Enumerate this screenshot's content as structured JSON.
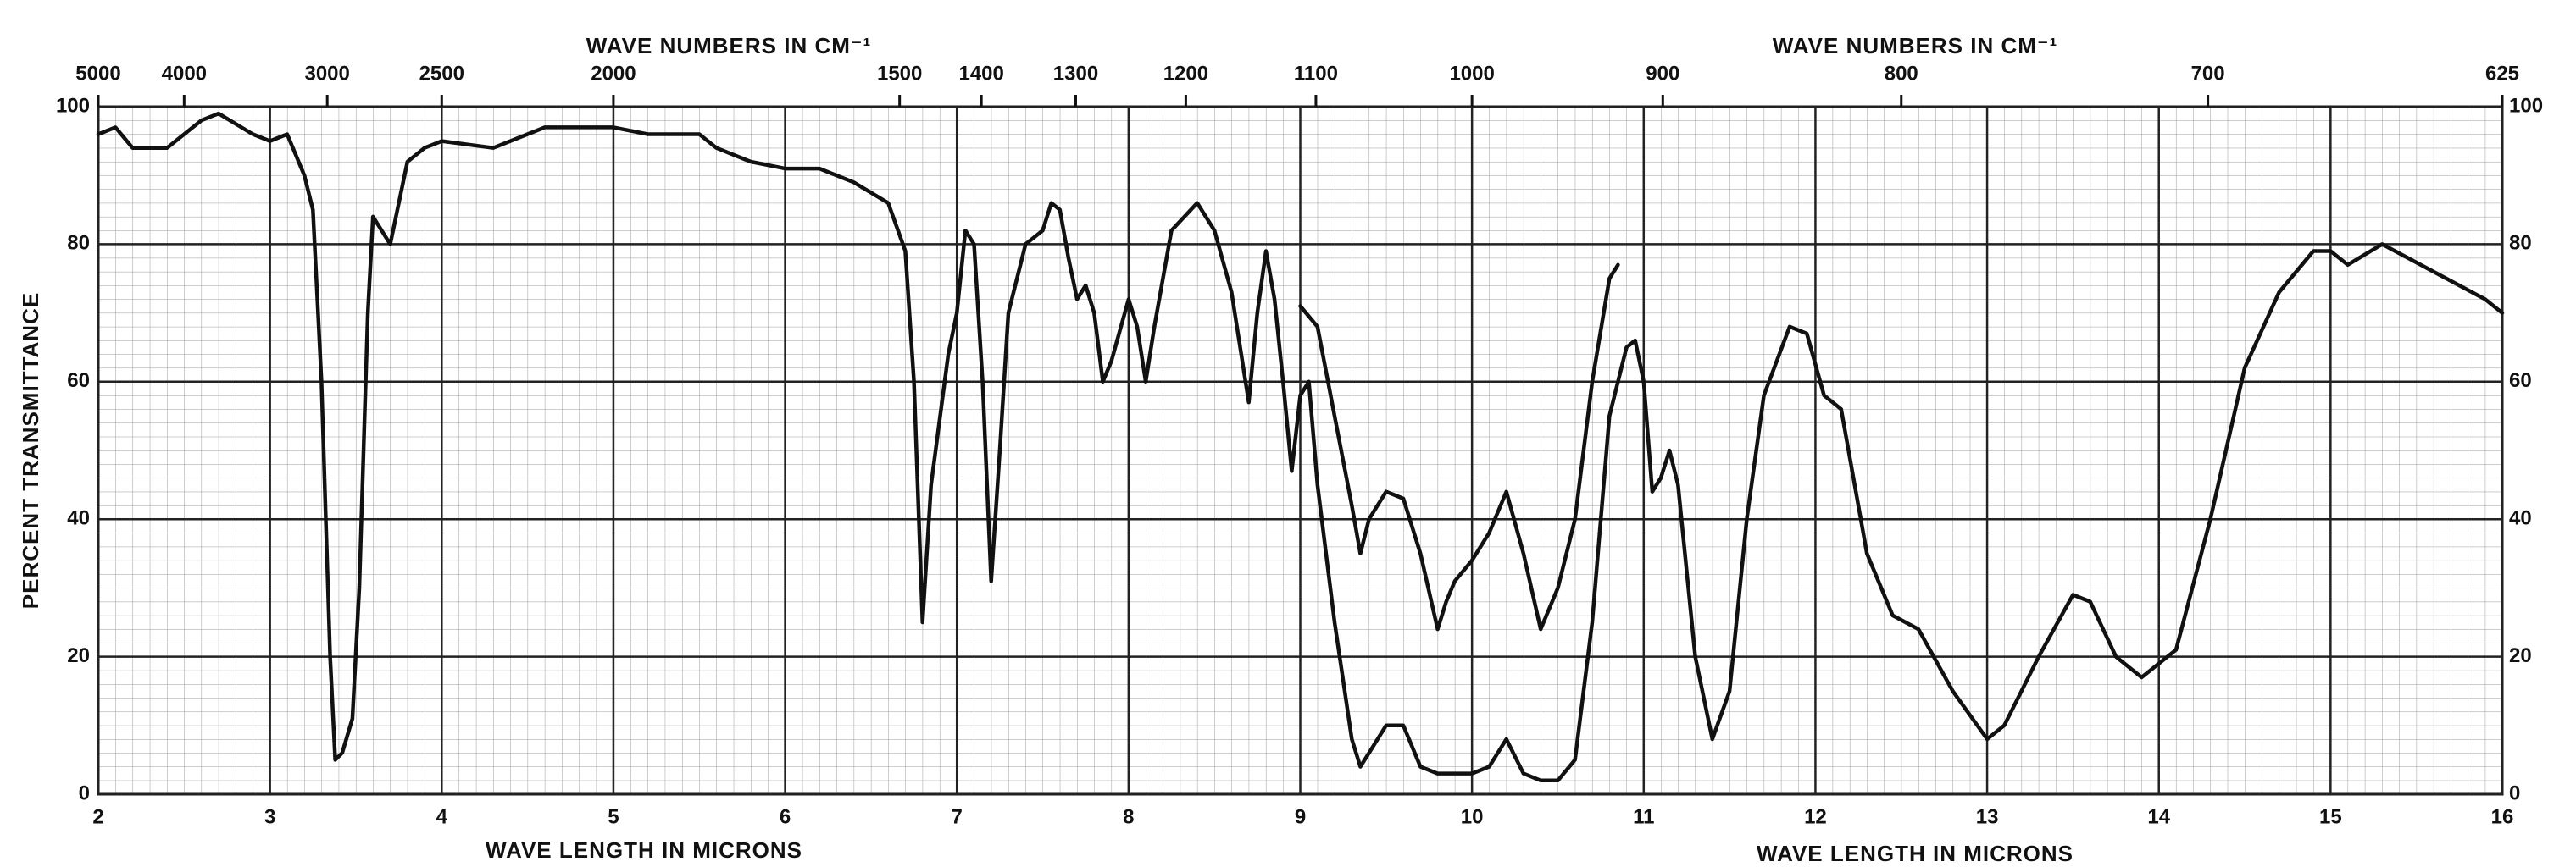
{
  "chart_data": {
    "type": "line",
    "x_label": "WAVE LENGTH IN MICRONS",
    "y_label": "PERCENT TRANSMITTANCE",
    "top_label": "WAVE NUMBERS IN CM⁻¹",
    "xlim": [
      2,
      16
    ],
    "ylim": [
      0,
      100
    ],
    "xticks": [
      2,
      3,
      4,
      5,
      6,
      7,
      8,
      9,
      10,
      11,
      12,
      13,
      14,
      15,
      16
    ],
    "yticks": [
      0,
      20,
      40,
      60,
      80,
      100
    ],
    "top_ticks": [
      5000,
      4000,
      3000,
      2500,
      2000,
      1500,
      1400,
      1300,
      1200,
      1100,
      1000,
      900,
      800,
      700,
      625
    ],
    "grid": true,
    "series": [
      {
        "color": "#111111",
        "x": [
          2.0,
          2.1,
          2.2,
          2.4,
          2.6,
          2.7,
          2.9,
          3.0,
          3.1,
          3.2,
          3.25,
          3.3,
          3.35,
          3.38,
          3.42,
          3.48,
          3.52,
          3.57,
          3.6,
          3.65,
          3.7,
          3.8,
          3.9,
          4.0,
          4.3,
          4.5,
          4.6,
          5.0,
          5.2,
          5.5,
          5.6,
          5.8,
          6.0,
          6.2,
          6.4,
          6.6,
          6.7,
          6.75,
          6.8,
          6.85,
          6.95,
          7.0,
          7.05,
          7.1,
          7.15,
          7.2,
          7.25,
          7.3,
          7.4,
          7.5,
          7.55,
          7.6,
          7.65,
          7.7,
          7.75,
          7.8,
          7.85,
          7.9,
          8.0,
          8.05,
          8.1,
          8.15,
          8.25,
          8.4,
          8.5,
          8.6,
          8.7,
          8.75,
          8.8,
          8.85,
          8.9,
          8.95,
          9.0,
          9.05,
          9.1,
          9.2,
          9.3,
          9.35,
          9.4,
          9.5,
          9.6,
          9.7,
          9.8,
          9.9,
          10.0,
          10.1,
          10.2,
          10.3,
          10.4,
          10.5,
          10.6,
          10.7,
          10.8,
          10.9,
          10.95,
          11.0,
          11.05,
          11.1,
          11.15,
          11.2,
          11.3,
          11.4,
          11.5,
          11.6,
          11.7,
          11.85,
          11.95,
          12.05,
          12.15,
          12.3,
          12.45,
          12.6,
          12.8,
          13.0,
          13.1,
          13.3,
          13.5,
          13.6,
          13.75,
          13.9,
          14.1,
          14.3,
          14.5,
          14.7,
          14.9,
          15.0,
          15.1,
          15.3,
          15.6,
          15.9,
          16.0
        ],
        "values": [
          96,
          97,
          94,
          94,
          98,
          99,
          96,
          95,
          96,
          90,
          85,
          60,
          20,
          5,
          6,
          11,
          30,
          70,
          84,
          82,
          80,
          92,
          94,
          95,
          94,
          96,
          97,
          97,
          96,
          96,
          94,
          92,
          91,
          91,
          89,
          86,
          79,
          60,
          25,
          45,
          64,
          70,
          82,
          80,
          60,
          31,
          50,
          70,
          80,
          82,
          86,
          85,
          78,
          72,
          74,
          70,
          60,
          63,
          72,
          68,
          60,
          68,
          82,
          86,
          82,
          73,
          57,
          70,
          79,
          72,
          60,
          47,
          58,
          60,
          45,
          25,
          8,
          4,
          6,
          10,
          10,
          4,
          3,
          3,
          3,
          4,
          8,
          3,
          2,
          2,
          5,
          25,
          55,
          65,
          66,
          60,
          44,
          46,
          50,
          45,
          20,
          8,
          15,
          40,
          58,
          68,
          67,
          58,
          56,
          35,
          26,
          24,
          15,
          8,
          10,
          20,
          29,
          28,
          20,
          17,
          21,
          40,
          62,
          73,
          79,
          79,
          77,
          80,
          76,
          72,
          70
        ]
      },
      {
        "color": "#111111",
        "x": [
          9.0,
          9.1,
          9.2,
          9.3,
          9.35,
          9.4,
          9.5,
          9.6,
          9.7,
          9.8,
          9.85,
          9.9,
          10.0,
          10.1,
          10.2,
          10.3,
          10.4,
          10.5,
          10.6,
          10.7,
          10.8,
          10.85
        ],
        "values": [
          71,
          68,
          55,
          42,
          35,
          40,
          44,
          43,
          35,
          24,
          28,
          31,
          34,
          38,
          44,
          35,
          24,
          30,
          40,
          60,
          75,
          77
        ]
      }
    ]
  }
}
